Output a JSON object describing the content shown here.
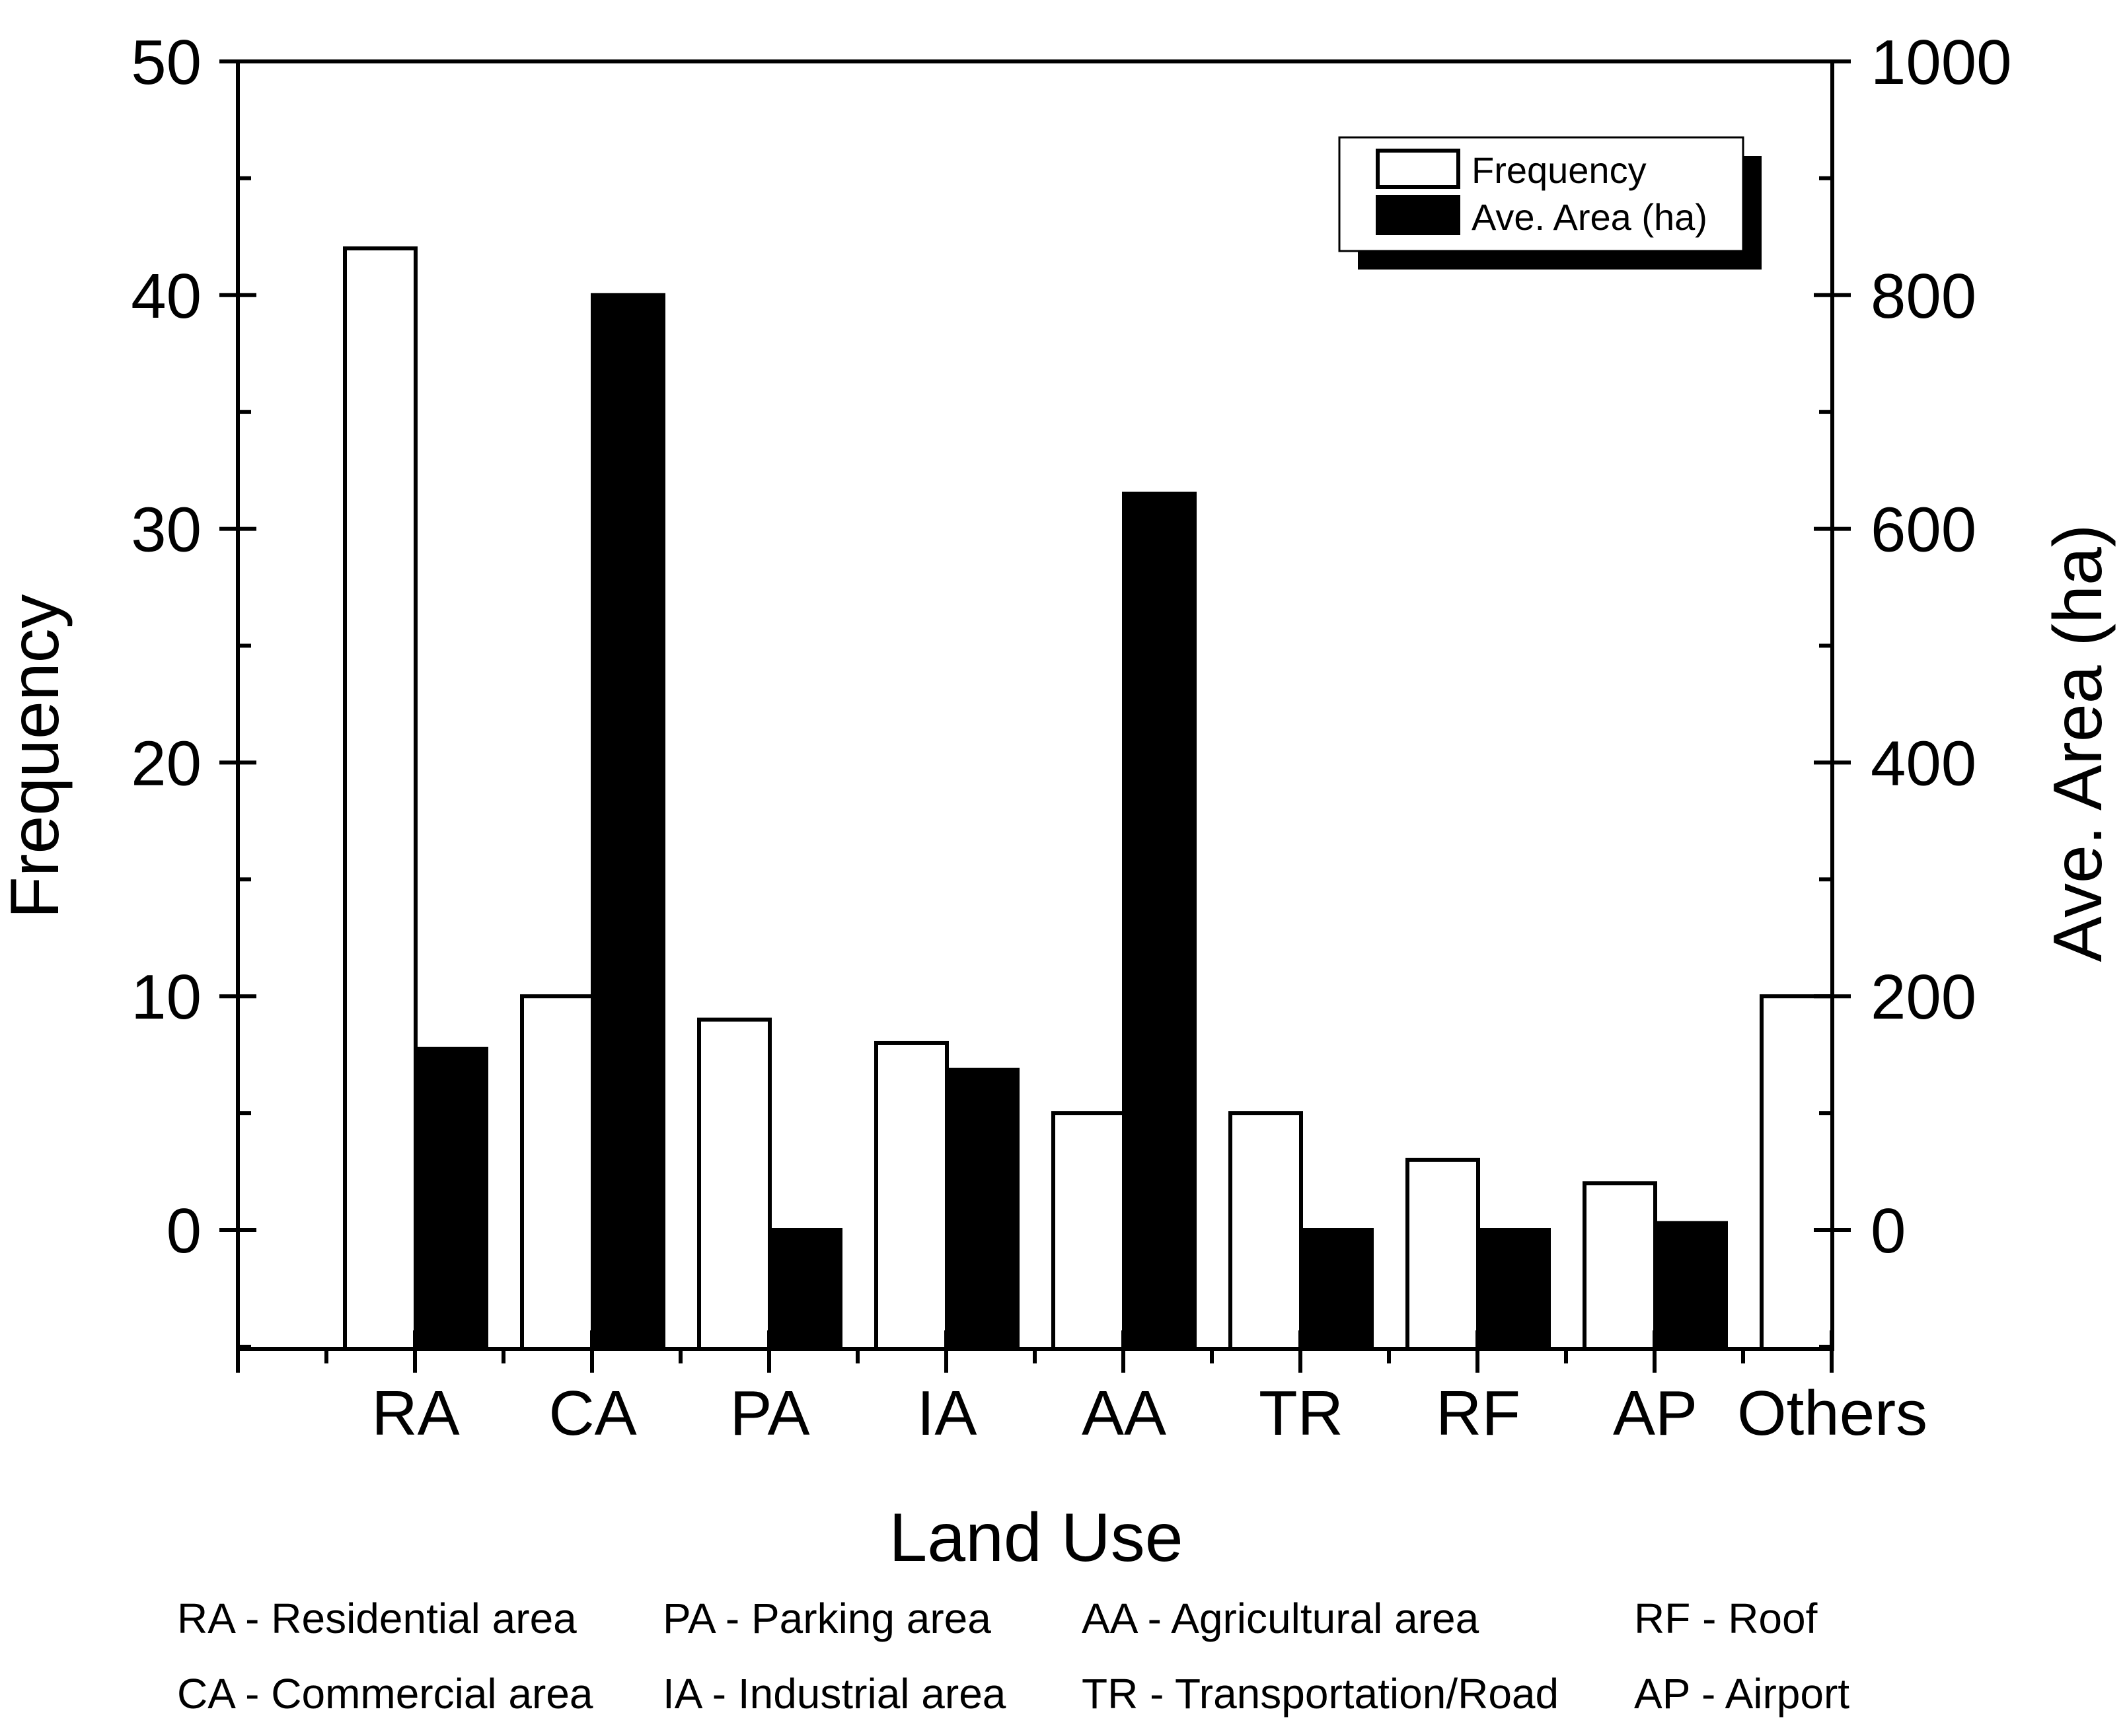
{
  "chart_data": {
    "type": "bar",
    "xlabel": "Land Use",
    "categories": [
      "RA",
      "CA",
      "PA",
      "IA",
      "AA",
      "TR",
      "RF",
      "AP",
      "Others"
    ],
    "series": [
      {
        "name": "Frequency",
        "axis": "left",
        "fill": "#ffffff",
        "values": [
          42,
          10,
          9,
          8,
          5,
          5,
          3,
          2,
          10
        ]
      },
      {
        "name": "Ave. Area (ha)",
        "axis": "right",
        "fill": "#000000",
        "values": [
          155,
          800,
          0,
          137,
          630,
          0,
          0,
          6,
          null
        ]
      }
    ],
    "y_left": {
      "label": "Frequency",
      "ylim": [
        -5,
        50
      ],
      "ticks": [
        "0",
        "10",
        "20",
        "30",
        "40",
        "50"
      ],
      "tick_values": [
        0,
        10,
        20,
        30,
        40,
        50
      ]
    },
    "y_right": {
      "label": "Ave. Area (ha)",
      "ylim": [
        -100,
        1000
      ],
      "ticks": [
        "0",
        "200",
        "400",
        "600",
        "800",
        "1000"
      ],
      "tick_values": [
        0,
        200,
        400,
        600,
        800,
        1000
      ]
    },
    "grid": false,
    "legend": {
      "position": "top-right",
      "entries": [
        "Frequency",
        "Ave. Area (ha)"
      ]
    },
    "footnotes": [
      "RA - Residential area",
      "CA - Commercial area",
      "PA - Parking area",
      "IA - Industrial area",
      "AA - Agricultural area",
      "TR - Transportation/Road",
      "RF - Roof",
      "AP - Airport"
    ]
  }
}
